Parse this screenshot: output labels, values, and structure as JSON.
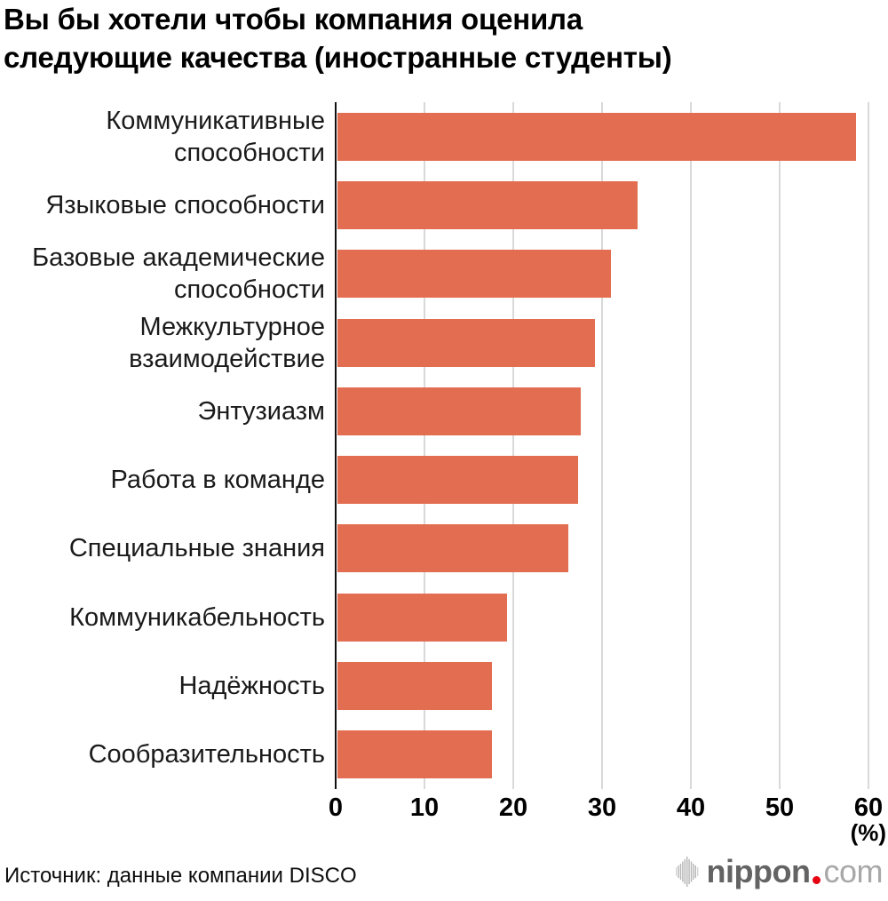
{
  "title": "Вы бы хотели чтобы компания оценила\nследующие качества (иностранные студенты)",
  "chart_data": {
    "type": "bar",
    "orientation": "horizontal",
    "title": "Вы бы хотели чтобы компания оценила следующие качества (иностранные студенты)",
    "unit_label": "(%)",
    "xlim": [
      0,
      60
    ],
    "x_ticks": [
      0,
      10,
      20,
      30,
      40,
      50,
      60
    ],
    "grid": true,
    "bar_color": "#e36d50",
    "categories": [
      "Коммуникативные\nспособности",
      "Языковые способности",
      "Базовые академические\nспособности",
      "Межкультурное\nвзаимодействие",
      "Энтузиазм",
      "Работа в команде",
      "Специальные знания",
      "Коммуникабельность",
      "Надёжность",
      "Сообразительность"
    ],
    "values": [
      58.4,
      33.8,
      30.8,
      29.0,
      27.4,
      27.1,
      26.0,
      19.1,
      17.4,
      17.4
    ]
  },
  "source": "Источник: данные компании DISCO",
  "logo": {
    "name": "nippon",
    "domain": "com",
    "dot_color": "#e60012",
    "icon": "soundwave-icon"
  }
}
